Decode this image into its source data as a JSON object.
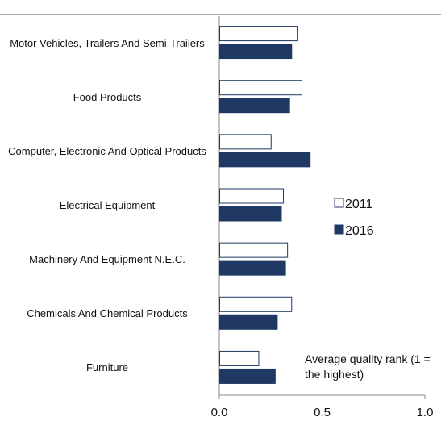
{
  "chart_data": {
    "type": "barh",
    "categories": [
      "Motor Vehicles, Trailers And Semi-Trailers",
      "Food Products",
      "Computer, Electronic And Optical Products",
      "Electrical Equipment",
      "Machinery And Equipment N.E.C.",
      "Chemicals And Chemical Products",
      "Furniture"
    ],
    "series": [
      {
        "name": "2011",
        "color": "#ffffff",
        "values": [
          0.38,
          0.4,
          0.25,
          0.31,
          0.33,
          0.35,
          0.19
        ]
      },
      {
        "name": "2016",
        "color": "#1f3864",
        "values": [
          0.35,
          0.34,
          0.44,
          0.3,
          0.32,
          0.28,
          0.27
        ]
      }
    ],
    "xlim": [
      0,
      1
    ],
    "xticks": [
      {
        "value": 0,
        "label": "0.0"
      },
      {
        "value": 0.5,
        "label": "0.5"
      },
      {
        "value": 1,
        "label": "1.0"
      }
    ],
    "annotation": "Average quality rank (1 = the highest)",
    "outline_color": "#1f3864"
  }
}
